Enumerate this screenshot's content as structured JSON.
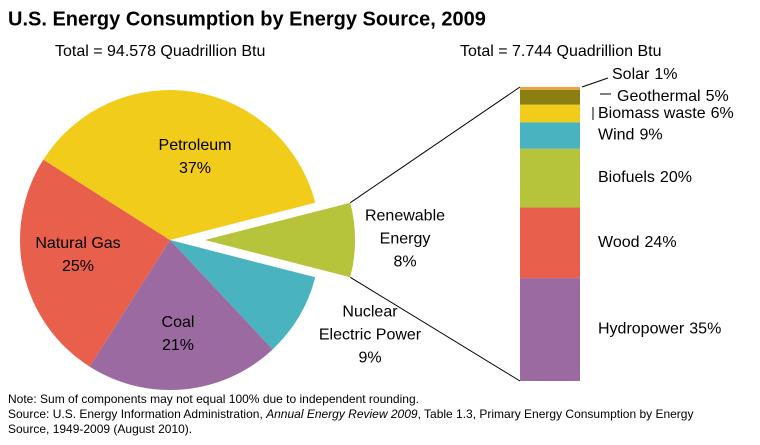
{
  "chart_data": [
    {
      "type": "pie",
      "title": "U.S. Energy Consumption by Energy Source, 2009",
      "subtitle": "Total = 94.578 Quadrillion Btu",
      "categories": [
        "Renewable\nEnergy",
        "Nuclear\nElectric Power",
        "Coal",
        "Natural Gas",
        "Petroleum"
      ],
      "values": [
        8,
        9,
        21,
        25,
        37
      ],
      "value_labels": [
        "8%",
        "9%",
        "21%",
        "25%",
        "37%"
      ],
      "colors": [
        "#b5c43b",
        "#4ab3c0",
        "#9b6aa0",
        "#e8604c",
        "#f2cc1b"
      ]
    },
    {
      "type": "bar",
      "subtitle": "Total = 7.744 Quadrillion Btu",
      "categories": [
        "Hydropower",
        "Wood",
        "Biofuels",
        "Wind",
        "Biomass waste",
        "Geothermal",
        "Solar"
      ],
      "values": [
        35,
        24,
        20,
        9,
        6,
        5,
        1
      ],
      "value_labels": [
        "35%",
        "24%",
        "20%",
        "9%",
        "6%",
        "5%",
        "1%"
      ],
      "colors": [
        "#9b6aa0",
        "#e8604c",
        "#b5c43b",
        "#4ab3c0",
        "#f2cc1b",
        "#8a7f10",
        "#e8a33a"
      ],
      "stacked": true
    }
  ],
  "notes": {
    "note": "Note: Sum of components may not equal 100% due to independent rounding.",
    "source": [
      "Source: U.S. Energy Information Administration, ",
      "Annual Energy Review 2009",
      ", Table 1.3, Primary Energy Consumption by Energy Source, 1949-2009 (August 2010)."
    ]
  }
}
